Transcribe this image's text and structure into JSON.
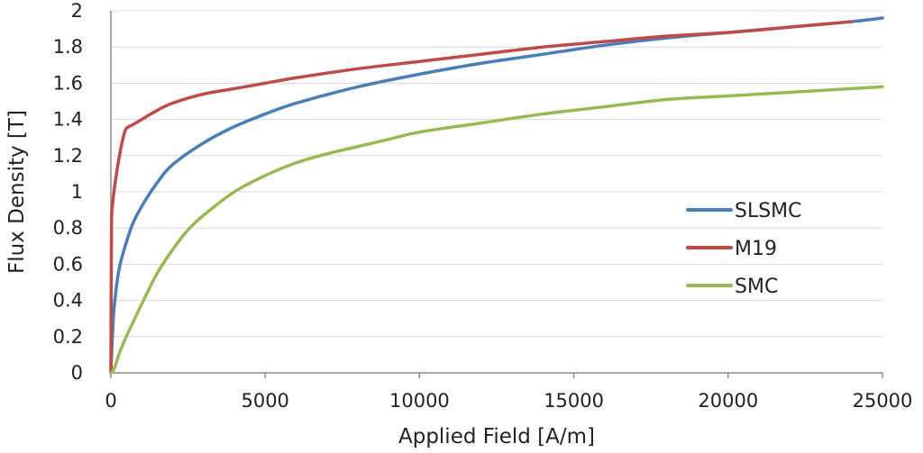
{
  "chart_data": {
    "type": "line",
    "xlabel": "Applied Field [A/m]",
    "ylabel": "Flux Density [T]",
    "xlim": [
      0,
      25000
    ],
    "ylim": [
      0,
      2
    ],
    "xticks": [
      0,
      5000,
      10000,
      15000,
      20000,
      25000
    ],
    "yticks": [
      0,
      0.2,
      0.4,
      0.6,
      0.8,
      1,
      1.2,
      1.4,
      1.6,
      1.8,
      2
    ],
    "xtick_labels": [
      "0",
      "5000",
      "10000",
      "15000",
      "20000",
      "25000"
    ],
    "ytick_labels": [
      "0",
      "0.2",
      "0.4",
      "0.6",
      "0.8",
      "1",
      "1.2",
      "1.4",
      "1.6",
      "1.8",
      "2"
    ],
    "grid": "horizontal",
    "legend_position": "right",
    "series": [
      {
        "name": "SLSMC",
        "color": "#4a7ebb",
        "x": [
          0,
          50,
          100,
          200,
          300,
          500,
          700,
          1000,
          1500,
          2000,
          3000,
          4000,
          5000,
          6000,
          8000,
          10000,
          12000,
          14000,
          16000,
          18000,
          20000,
          22000,
          24000,
          25000
        ],
        "y": [
          0,
          0.2,
          0.35,
          0.5,
          0.6,
          0.72,
          0.82,
          0.92,
          1.05,
          1.15,
          1.27,
          1.36,
          1.43,
          1.49,
          1.58,
          1.65,
          1.71,
          1.76,
          1.81,
          1.85,
          1.88,
          1.91,
          1.94,
          1.96
        ]
      },
      {
        "name": "M19",
        "color": "#be4b48",
        "x": [
          0,
          20,
          50,
          100,
          200,
          300,
          400,
          500,
          700,
          1000,
          1500,
          2000,
          3000,
          4000,
          5000,
          6000,
          8000,
          10000,
          12000,
          14000,
          16000,
          18000,
          20000,
          22000,
          24000
        ],
        "y": [
          0,
          0.8,
          0.92,
          1.0,
          1.12,
          1.22,
          1.3,
          1.35,
          1.37,
          1.4,
          1.45,
          1.49,
          1.54,
          1.57,
          1.6,
          1.63,
          1.68,
          1.72,
          1.76,
          1.8,
          1.83,
          1.86,
          1.88,
          1.91,
          1.94
        ]
      },
      {
        "name": "SMC",
        "color": "#98b954",
        "x": [
          0,
          100,
          300,
          500,
          1000,
          1500,
          2000,
          2500,
          3000,
          4000,
          5000,
          6000,
          7000,
          8000,
          9000,
          10000,
          12000,
          14000,
          16000,
          18000,
          20000,
          22000,
          24000,
          25000
        ],
        "y": [
          0,
          0.02,
          0.12,
          0.2,
          0.38,
          0.55,
          0.68,
          0.79,
          0.87,
          1.0,
          1.09,
          1.16,
          1.21,
          1.25,
          1.29,
          1.33,
          1.38,
          1.43,
          1.47,
          1.51,
          1.53,
          1.55,
          1.57,
          1.58
        ]
      }
    ]
  }
}
